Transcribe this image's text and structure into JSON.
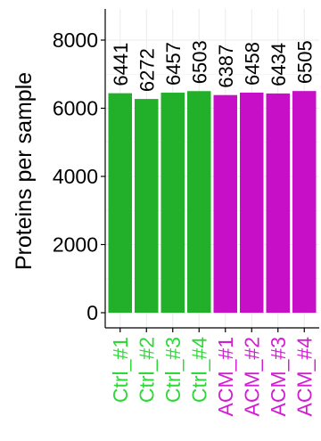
{
  "chart_data": {
    "type": "bar",
    "ylabel": "Proteins per sample",
    "xlabel": "",
    "title": "",
    "ylim": [
      0,
      8900
    ],
    "yticks": [
      0,
      2000,
      4000,
      6000,
      8000
    ],
    "grid": true,
    "categories": [
      "Ctrl_#1",
      "Ctrl_#2",
      "Ctrl_#3",
      "Ctrl_#4",
      "ACM_#1",
      "ACM_#2",
      "ACM_#3",
      "ACM_#4"
    ],
    "values": [
      6441,
      6272,
      6457,
      6503,
      6387,
      6458,
      6434,
      6505
    ],
    "data_labels": [
      "6441",
      "6272",
      "6457",
      "6503",
      "6387",
      "6458",
      "6434",
      "6505"
    ],
    "groups": [
      {
        "members": [
          "Ctrl_#1",
          "Ctrl_#2",
          "Ctrl_#3",
          "Ctrl_#4"
        ],
        "bar_color": "#22b02a",
        "label_color": "#2ed838"
      },
      {
        "members": [
          "ACM_#1",
          "ACM_#2",
          "ACM_#3",
          "ACM_#4"
        ],
        "bar_color": "#c60fc6",
        "label_color": "#d21ed2"
      }
    ],
    "grid_color": "#ebebeb",
    "axis_color": "#000000"
  }
}
